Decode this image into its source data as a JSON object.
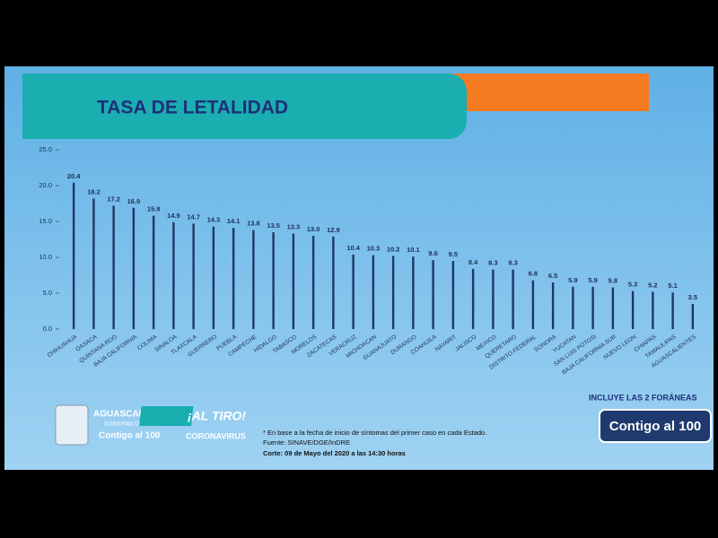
{
  "chart_data": {
    "type": "bar",
    "title": "TASA DE LETALIDAD",
    "categories": [
      "CHIHUAHUA",
      "OAXACA",
      "QUINTANA ROO",
      "BAJA CALIFORNIA",
      "COLIMA",
      "SINALOA",
      "TLAXCALA",
      "GUERRERO",
      "PUEBLA",
      "CAMPECHE",
      "HIDALGO",
      "TABASCO",
      "MORELOS",
      "ZACATECAS",
      "VERACRUZ",
      "MICHOACAN",
      "GUANAJUATO",
      "DURANGO",
      "COAHUILA",
      "NAYARIT",
      "JALISCO",
      "MEXICO",
      "QUERETARO",
      "DISTRITO FEDERAL",
      "SONORA",
      "YUCATAN",
      "SAN LUIS POTOSI",
      "BAJA CALIFORNIA SUR",
      "NUEVO LEON",
      "CHIAPAS",
      "TAMAULIPAS",
      "AGUASCALIENTES"
    ],
    "values": [
      20.4,
      18.2,
      17.2,
      16.9,
      15.8,
      14.9,
      14.7,
      14.3,
      14.1,
      13.8,
      13.5,
      13.3,
      13.0,
      12.9,
      10.4,
      10.3,
      10.2,
      10.1,
      9.6,
      9.5,
      8.4,
      8.3,
      8.3,
      6.8,
      6.5,
      5.9,
      5.9,
      5.8,
      5.3,
      5.2,
      5.1,
      3.5
    ],
    "value_labels": [
      "20.4",
      "18.2",
      "17.2",
      "16.9",
      "15.8",
      "14.9",
      "14.7",
      "14.3",
      "14.1",
      "13.8",
      "13.5",
      "13.3",
      "13.0",
      "12.9",
      "10.4",
      "10.3",
      "10.2",
      "10.1",
      "9.6",
      "9.5",
      "8.4",
      "8.3",
      "8.3",
      "6.8",
      "6.5",
      "5.9",
      "5.9",
      "5.8",
      "5.3",
      "5.2",
      "5.1",
      "3.5"
    ],
    "color": "#1f3864",
    "ylim": [
      0,
      25
    ],
    "yticks": [
      {
        "value": 0,
        "label": "0.0"
      },
      {
        "value": 5,
        "label": "5.0"
      },
      {
        "value": 10,
        "label": "10.0"
      },
      {
        "value": 15,
        "label": "15.0"
      },
      {
        "value": 20,
        "label": "20.0"
      },
      {
        "value": 25,
        "label": "25.0"
      }
    ],
    "grid": false
  },
  "footer": {
    "state": "AGUASCALIENTES",
    "government": "GOBIERNO DEL ESTADO",
    "slogan": "Contigo al 100",
    "campaign": "¡AL TIRO!",
    "campaign_sub": "CORONAVIRUS",
    "notes": [
      "* En base a la fecha de inicio de síntomas del primer caso en cada Estado.",
      "Fuente: SINAVE/DGE/InDRE",
      "Corte: 09 de Mayo del 2020 a las 14:30 horas"
    ],
    "badge_caption": "INCLUYE LAS 2 FORÁNEAS",
    "badge": "Contigo al 100"
  }
}
